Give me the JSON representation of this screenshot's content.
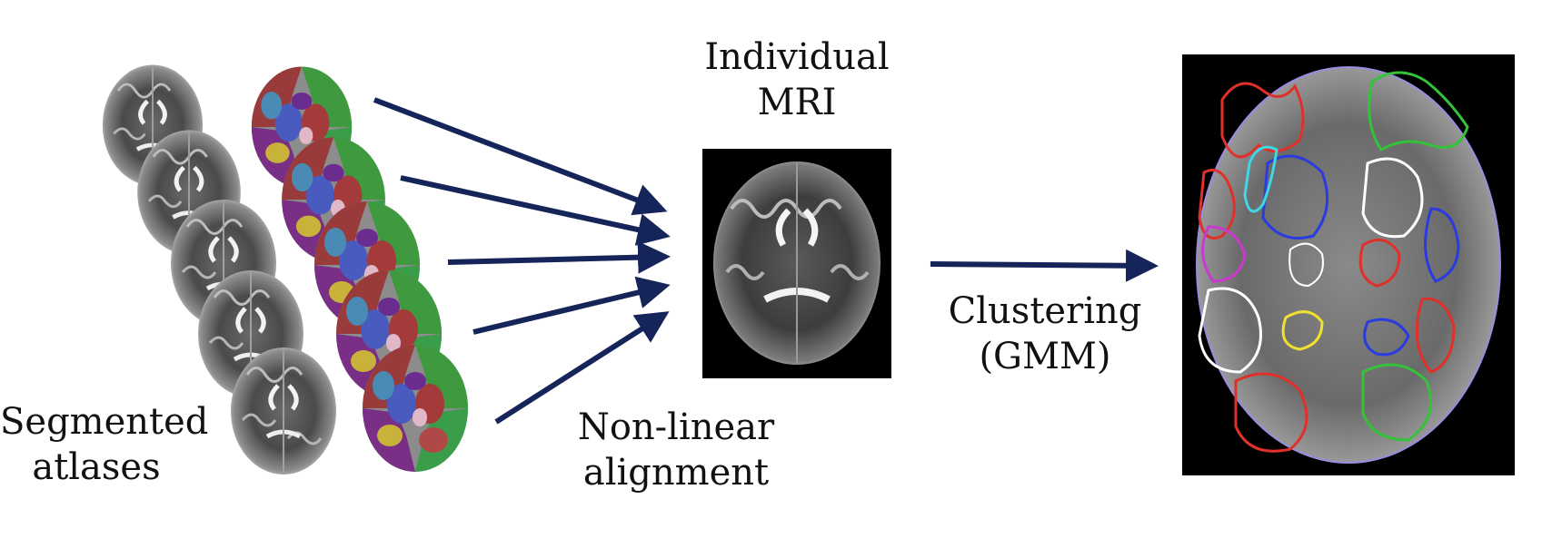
{
  "labels": {
    "individual_line1": "Individual",
    "individual_line2": "MRI",
    "segmented_line1": "Segmented",
    "segmented_line2": "atlases",
    "nonlinear_line1": "Non-linear",
    "nonlinear_line2": "alignment",
    "clustering_line1": "Clustering",
    "clustering_line2": "(GMM)"
  },
  "colors": {
    "arrow": "#152459",
    "mri_bg": "#000000",
    "seg_red": "#e0302a",
    "seg_green": "#34c23a",
    "seg_blue": "#2a3be0",
    "seg_magenta": "#c83ad0",
    "seg_cyan": "#3fd6e6",
    "seg_white": "#ffffff",
    "seg_yellow": "#f0e030"
  },
  "atlas_count": 5
}
